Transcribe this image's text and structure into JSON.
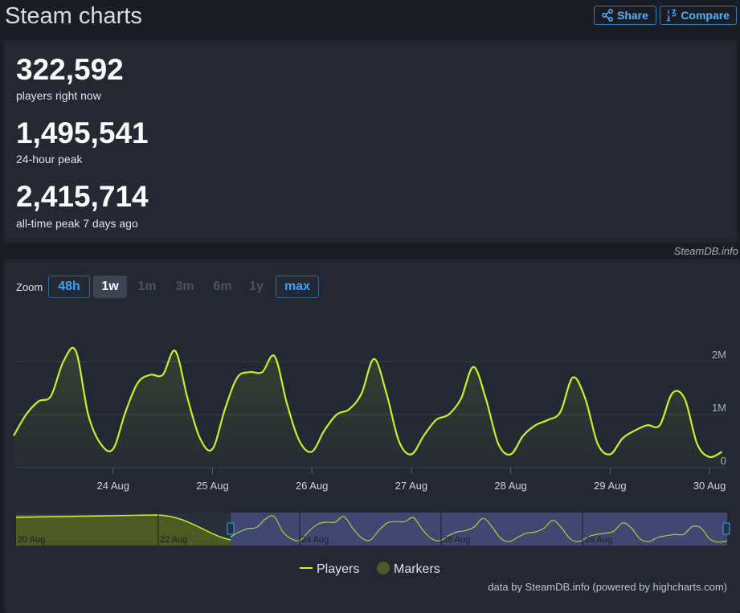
{
  "header": {
    "title": "Steam charts",
    "share": "Share",
    "compare": "Compare"
  },
  "stats": [
    {
      "value": "322,592",
      "label": "players right now"
    },
    {
      "value": "1,495,541",
      "label": "24-hour peak"
    },
    {
      "value": "2,415,714",
      "label": "all-time peak 7 days ago"
    }
  ],
  "credit": "SteamDB.info",
  "zoom": {
    "label": "Zoom",
    "options": [
      "48h",
      "1w",
      "1m",
      "3m",
      "6m",
      "1y",
      "max"
    ]
  },
  "chart_data": {
    "type": "line",
    "x": [
      0,
      1,
      2,
      3,
      4,
      5,
      6,
      7,
      8,
      9,
      10,
      11,
      12,
      13,
      14,
      15,
      16,
      17,
      18,
      19,
      20,
      21,
      22,
      23,
      24,
      25,
      26,
      27,
      28,
      29,
      30,
      31,
      32,
      33,
      34,
      35,
      36,
      37,
      38,
      39,
      40,
      41,
      42,
      43,
      44,
      45,
      46,
      47,
      48,
      49,
      50,
      51,
      52,
      53,
      54,
      55,
      56,
      57
    ],
    "series": [
      {
        "name": "Players",
        "color": "#c6f22b",
        "values": [
          600000,
          1000000,
          1250000,
          1350000,
          2000000,
          2200000,
          1000000,
          450000,
          350000,
          1050000,
          1600000,
          1750000,
          1750000,
          2200000,
          1300000,
          550000,
          350000,
          1100000,
          1700000,
          1800000,
          1800000,
          2100000,
          1200000,
          500000,
          300000,
          700000,
          1000000,
          1100000,
          1400000,
          2050000,
          1400000,
          500000,
          250000,
          600000,
          900000,
          1000000,
          1300000,
          1900000,
          1300000,
          450000,
          250000,
          600000,
          800000,
          900000,
          1050000,
          1700000,
          1300000,
          450000,
          250000,
          550000,
          700000,
          800000,
          800000,
          1400000,
          1300000,
          450000,
          200000,
          300000
        ]
      }
    ],
    "xlim": [
      0,
      58
    ],
    "xticks": [
      {
        "value": 8,
        "label": "24 Aug"
      },
      {
        "value": 16,
        "label": "25 Aug"
      },
      {
        "value": 24,
        "label": "26 Aug"
      },
      {
        "value": 32,
        "label": "27 Aug"
      },
      {
        "value": 40,
        "label": "28 Aug"
      },
      {
        "value": 48,
        "label": "29 Aug"
      },
      {
        "value": 56,
        "label": "30 Aug"
      }
    ],
    "ylim": [
      0,
      3000000
    ],
    "yticks": [
      0,
      {
        "value": 1000000,
        "label": "1M"
      },
      {
        "value": 2000000,
        "label": "2M"
      }
    ],
    "grid": true,
    "legend_extra": "Markers",
    "navigator_labels": [
      "20 Aug",
      "22 Aug",
      "24 Aug",
      "26 Aug",
      "28 Aug"
    ]
  },
  "footer": "data by SteamDB.info (powered by highcharts.com)"
}
